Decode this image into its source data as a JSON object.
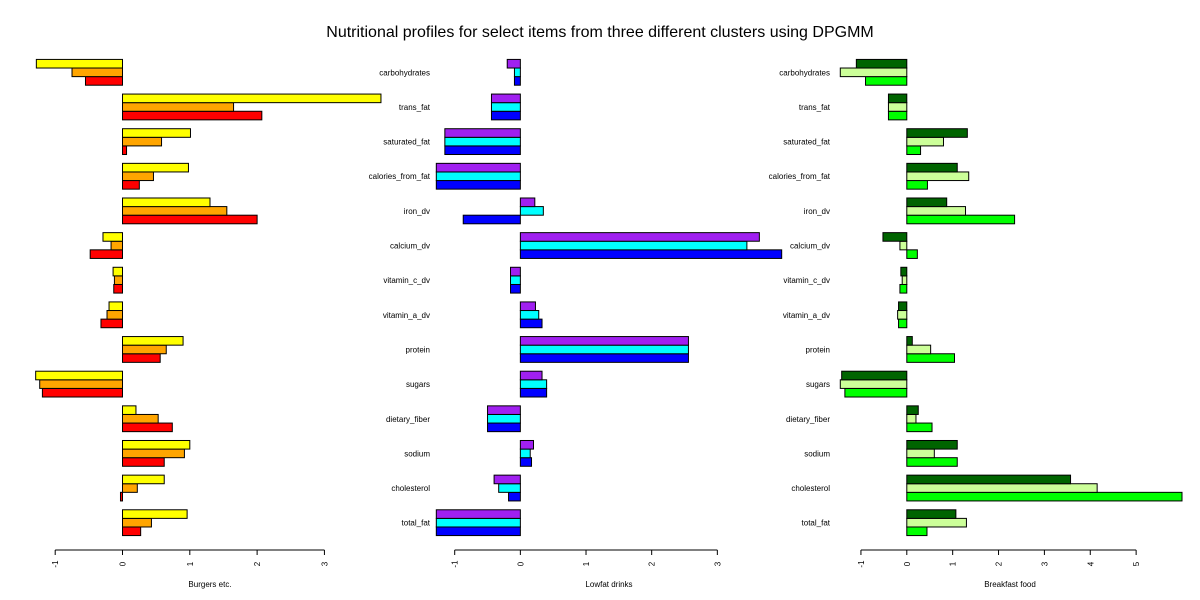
{
  "chart_data": {
    "type": "bar",
    "orientation": "horizontal",
    "title": "Nutritional profiles for select items from three different clusters using DPGMM",
    "categories": [
      "total_fat",
      "cholesterol",
      "sodium",
      "dietary_fiber",
      "sugars",
      "protein",
      "vitamin_a_dv",
      "vitamin_c_dv",
      "calcium_dv",
      "iron_dv",
      "calories_from_fat",
      "saturated_fat",
      "trans_fat",
      "carbohydrates"
    ],
    "grid": false,
    "panels": [
      {
        "xlabel": "Burgers etc.",
        "xlim": [
          -1.3,
          3.9
        ],
        "ticks": [
          -1,
          0,
          1,
          2,
          3
        ],
        "series": [
          {
            "color": "#ff0000",
            "values": [
              0.27,
              -0.03,
              0.62,
              0.74,
              -1.19,
              0.56,
              -0.32,
              -0.13,
              -0.48,
              2.0,
              0.25,
              0.06,
              2.07,
              -0.55
            ]
          },
          {
            "color": "#ffa500",
            "values": [
              0.43,
              0.22,
              0.92,
              0.53,
              -1.23,
              0.65,
              -0.23,
              -0.12,
              -0.17,
              1.55,
              0.46,
              0.58,
              1.65,
              -0.75
            ]
          },
          {
            "color": "#ffff00",
            "values": [
              0.96,
              0.62,
              1.0,
              0.2,
              -1.29,
              0.9,
              -0.2,
              -0.14,
              -0.29,
              1.3,
              0.98,
              1.01,
              3.84,
              -1.28
            ]
          }
        ]
      },
      {
        "xlabel": "Lowfat drinks",
        "xlim": [
          -1.3,
          4.0
        ],
        "ticks": [
          -1,
          0,
          1,
          2,
          3
        ],
        "series": [
          {
            "color": "#0000ff",
            "values": [
              -1.28,
              -0.18,
              0.17,
              -0.5,
              0.4,
              2.56,
              0.33,
              -0.15,
              3.98,
              -0.87,
              -1.28,
              -1.15,
              -0.44,
              -0.09
            ]
          },
          {
            "color": "#00ffff",
            "values": [
              -1.28,
              -0.33,
              0.15,
              -0.5,
              0.4,
              2.56,
              0.28,
              -0.15,
              3.45,
              0.35,
              -1.28,
              -1.15,
              -0.44,
              -0.09
            ]
          },
          {
            "color": "#a020f0",
            "values": [
              -1.28,
              -0.4,
              0.2,
              -0.5,
              0.33,
              2.56,
              0.23,
              -0.15,
              3.64,
              0.22,
              -1.28,
              -1.15,
              -0.44,
              -0.2
            ]
          }
        ]
      },
      {
        "xlabel": "Breakfast food",
        "xlim": [
          -1.5,
          6.0
        ],
        "ticks": [
          -1,
          0,
          1,
          2,
          3,
          4,
          5
        ],
        "series": [
          {
            "color": "#00ff00",
            "values": [
              0.44,
              6.0,
              1.1,
              0.55,
              -1.35,
              1.04,
              -0.18,
              -0.15,
              0.23,
              2.35,
              0.45,
              0.3,
              -0.4,
              -0.9
            ]
          },
          {
            "color": "#ccff99",
            "values": [
              1.3,
              4.15,
              0.6,
              0.2,
              -1.45,
              0.52,
              -0.2,
              -0.1,
              -0.15,
              1.28,
              1.35,
              0.8,
              -0.4,
              -1.45
            ]
          },
          {
            "color": "#006400",
            "values": [
              1.07,
              3.57,
              1.1,
              0.25,
              -1.42,
              0.12,
              -0.18,
              -0.13,
              -0.52,
              0.87,
              1.1,
              1.32,
              -0.4,
              -1.1
            ]
          }
        ]
      }
    ]
  }
}
